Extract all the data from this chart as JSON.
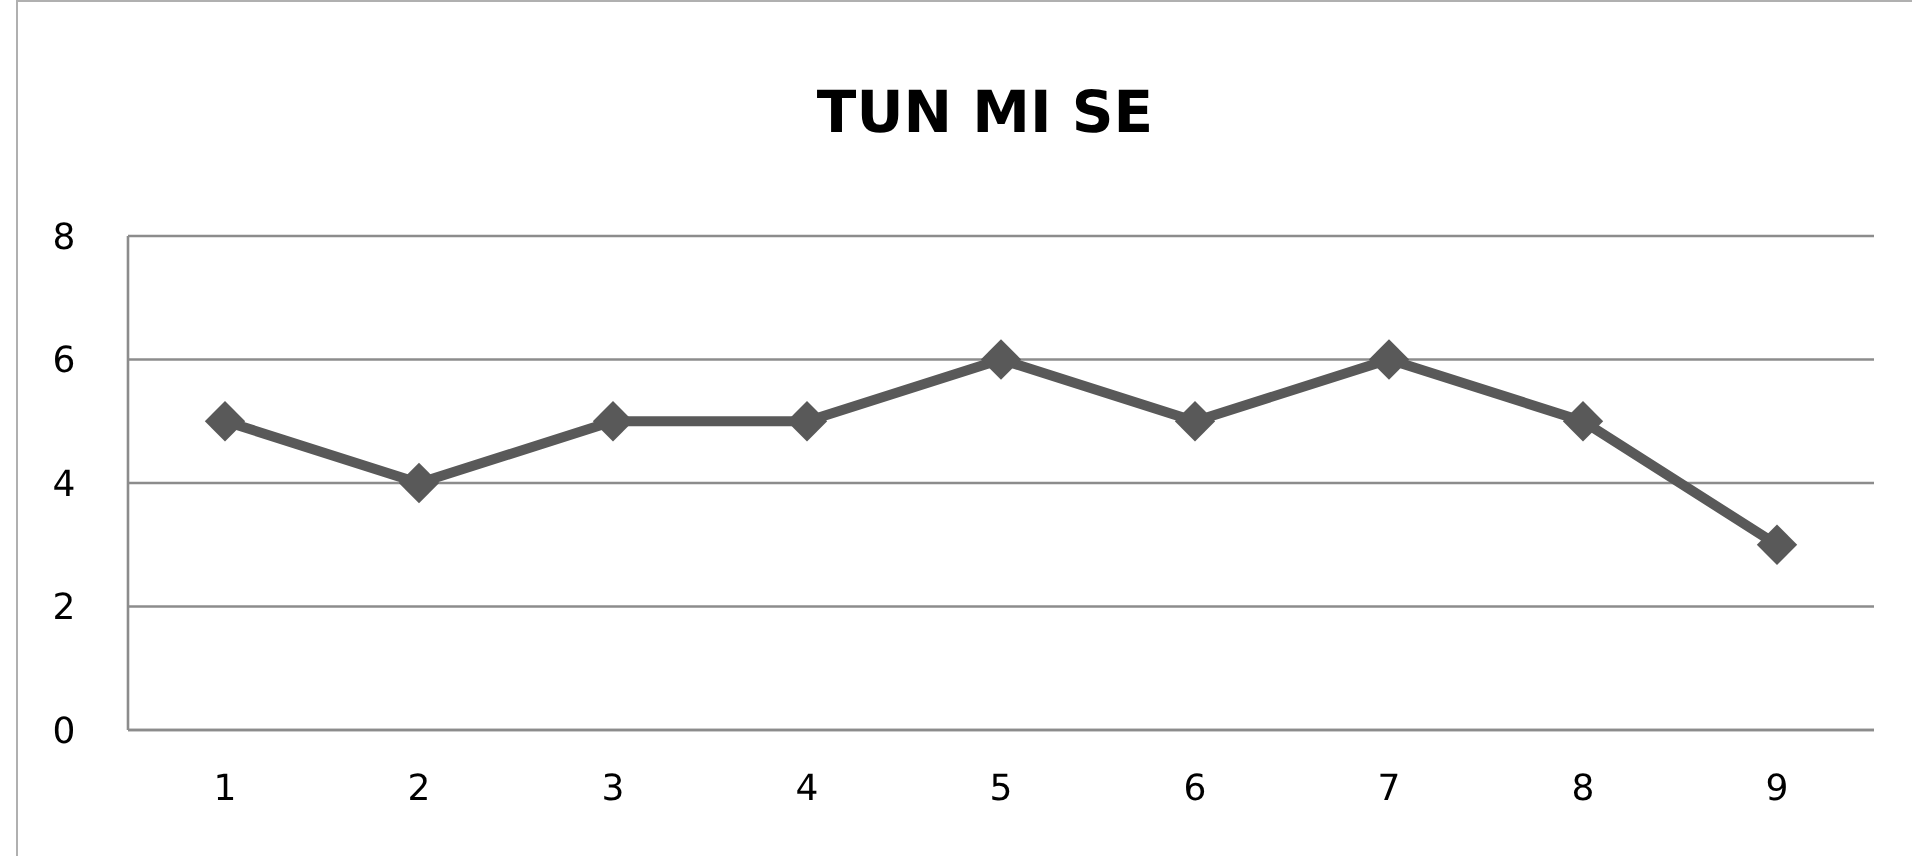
{
  "chart_data": {
    "type": "line",
    "title": "TUN MI SE",
    "categories": [
      "1",
      "2",
      "3",
      "4",
      "5",
      "6",
      "7",
      "8",
      "9"
    ],
    "series": [
      {
        "color": "#595959",
        "values": [
          5,
          4,
          5,
          5,
          6,
          5,
          6,
          5,
          3
        ]
      }
    ],
    "ylim": [
      0,
      8
    ],
    "yticks": [
      0,
      2,
      4,
      6,
      8
    ],
    "grid": "y",
    "marker": "diamond"
  }
}
